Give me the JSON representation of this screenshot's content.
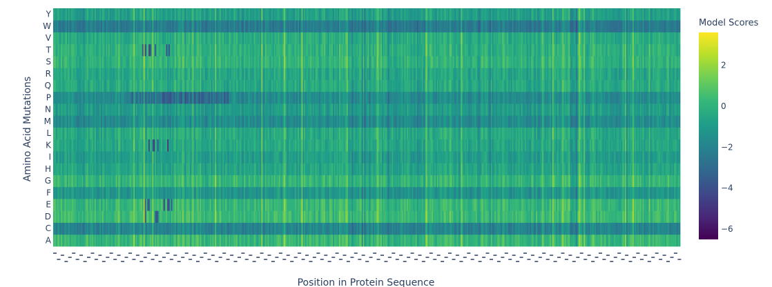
{
  "chart_data": {
    "type": "heatmap",
    "title": "",
    "xlabel": "Position in Protein Sequence",
    "ylabel": "Amino Acid Mutations",
    "y_categories": [
      "A",
      "C",
      "D",
      "E",
      "F",
      "G",
      "H",
      "I",
      "K",
      "L",
      "M",
      "N",
      "P",
      "Q",
      "R",
      "S",
      "T",
      "V",
      "W",
      "Y"
    ],
    "x_positions": 500,
    "colorscale": "Viridis",
    "zmin": -6.5,
    "zmax": 3.6,
    "colorbar": {
      "title": "Model Scores",
      "ticks": [
        "2",
        "0",
        "−2",
        "−4",
        "−6"
      ]
    },
    "row_means": {
      "A": 0.2,
      "C": -1.9,
      "D": 0.3,
      "E": 0.2,
      "F": -1.2,
      "G": 0.1,
      "H": -0.6,
      "I": -0.9,
      "K": -0.5,
      "L": -0.4,
      "M": -1.6,
      "N": -1.0,
      "P": -1.6,
      "Q": -0.4,
      "R": -0.5,
      "S": 0.0,
      "T": -0.1,
      "V": -0.3,
      "W": -2.3,
      "Y": -0.8
    },
    "x_tick_labels": "dense overlapping labels (unreadable)"
  }
}
